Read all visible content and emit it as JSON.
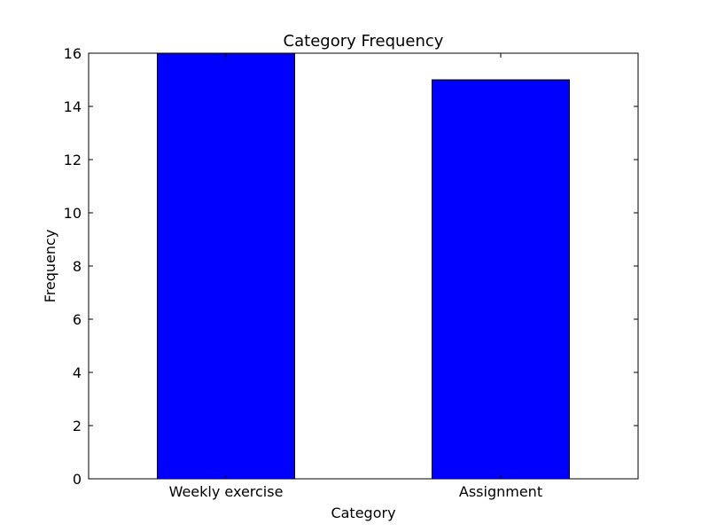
{
  "chart_data": {
    "type": "bar",
    "title": "Category Frequency",
    "xlabel": "Category",
    "ylabel": "Frequency",
    "categories": [
      "Weekly exercise",
      "Assignment"
    ],
    "values": [
      16,
      15
    ],
    "ylim": [
      0,
      16
    ],
    "yticks": [
      0,
      2,
      4,
      6,
      8,
      10,
      12,
      14,
      16
    ],
    "grid": false,
    "legend": "none",
    "bar_color": "#0000ff",
    "edge_color": "#000000"
  }
}
